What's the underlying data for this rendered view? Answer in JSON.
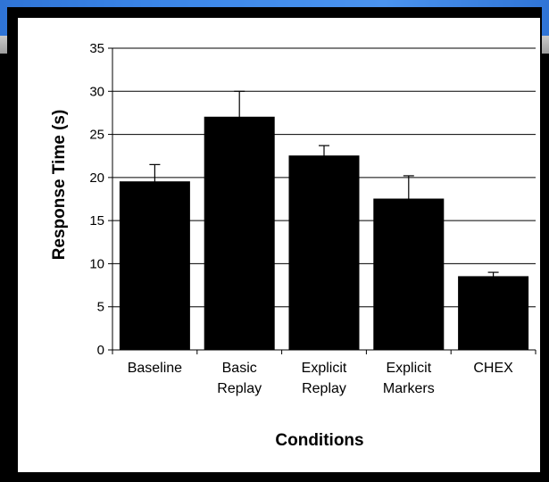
{
  "chart_data": {
    "type": "bar",
    "title": "",
    "xlabel": "Conditions",
    "ylabel": "Response Time (s)",
    "ylim": [
      0,
      35
    ],
    "yticks": [
      0,
      5,
      10,
      15,
      20,
      25,
      30,
      35
    ],
    "grid": "horizontal major gridlines",
    "legend": "none",
    "categories": [
      [
        "Baseline"
      ],
      [
        "Basic",
        "Replay"
      ],
      [
        "Explicit",
        "Replay"
      ],
      [
        "Explicit",
        "Markers"
      ],
      [
        "CHEX"
      ]
    ],
    "values": [
      19.5,
      27.0,
      22.5,
      17.5,
      8.5
    ],
    "error_upper": [
      21.5,
      30.0,
      23.7,
      20.2,
      9.0
    ],
    "bar_color": "#000000",
    "background_color": "#ffffff",
    "frame_color": "#000000"
  }
}
